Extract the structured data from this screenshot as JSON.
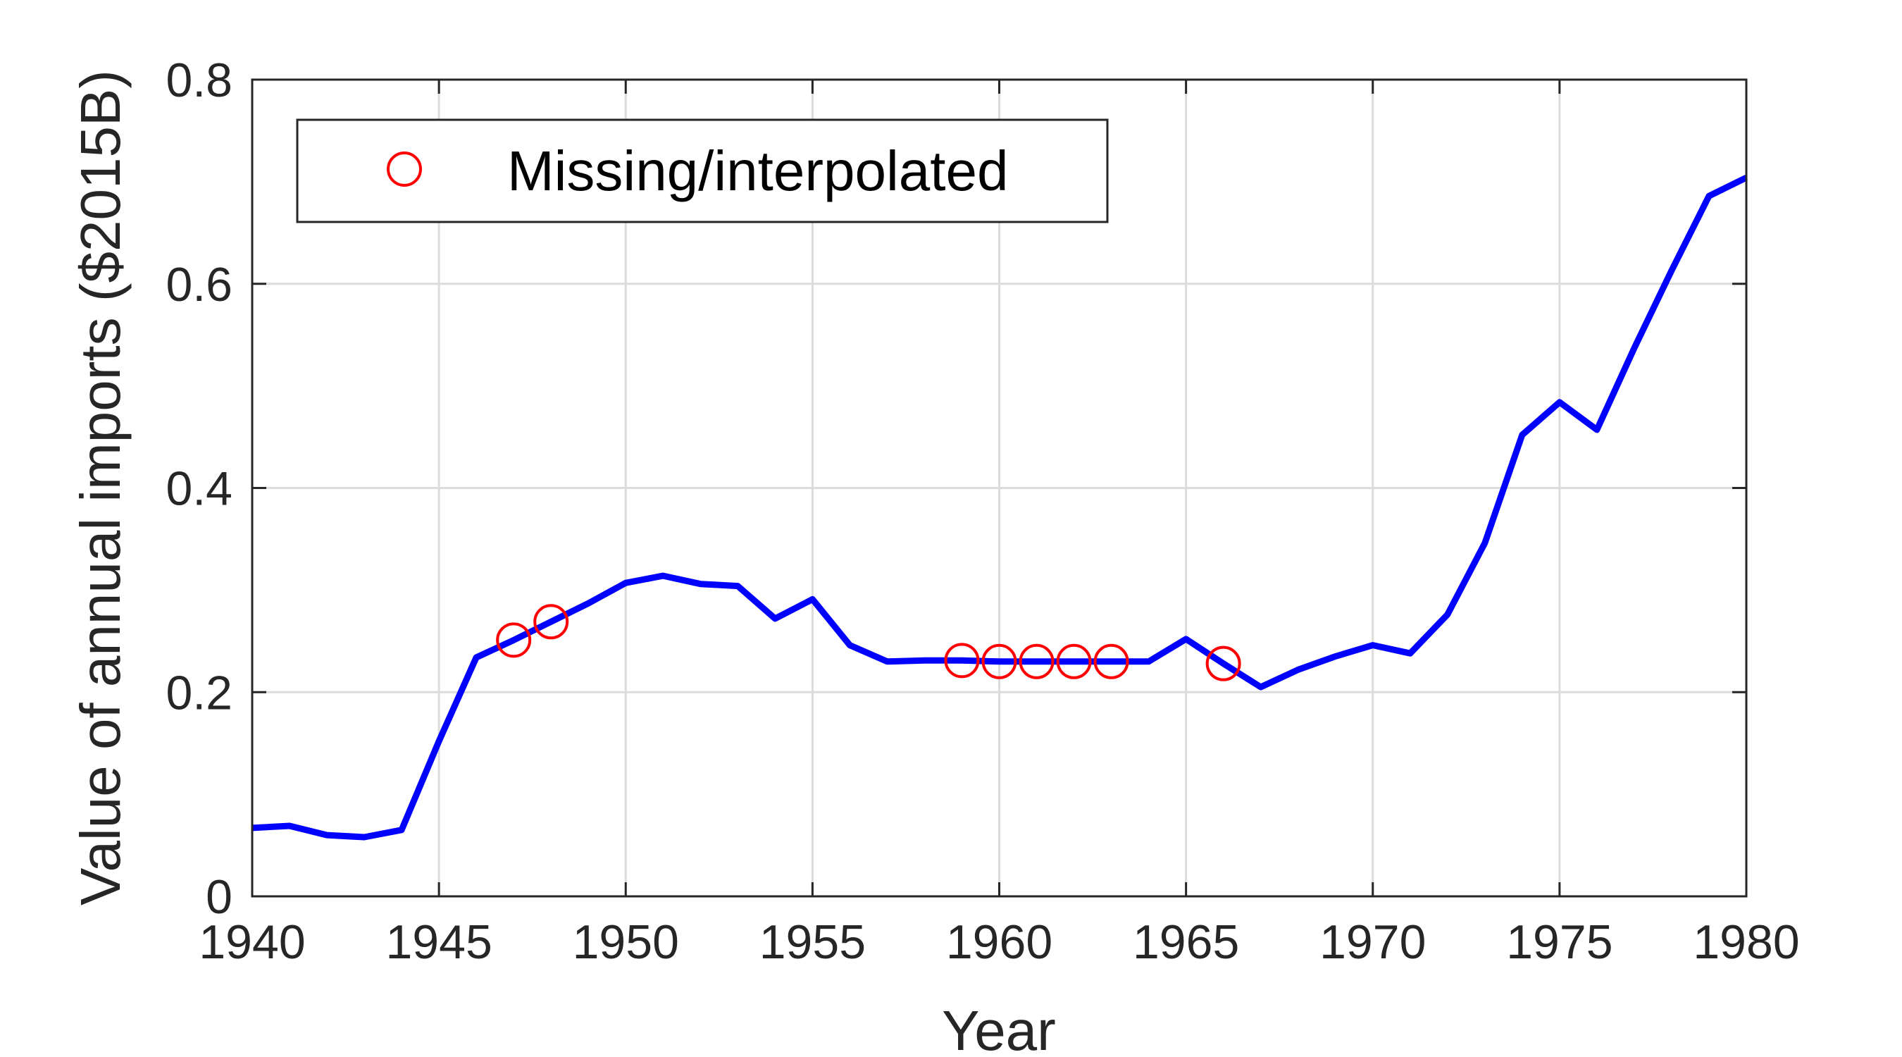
{
  "chart_data": {
    "type": "line",
    "title": "",
    "xlabel": "Year",
    "ylabel": "Value of annual imports ($2015B)",
    "xlim": [
      1940,
      1980
    ],
    "ylim": [
      0,
      0.8
    ],
    "xticks": [
      1940,
      1945,
      1950,
      1955,
      1960,
      1965,
      1970,
      1975,
      1980
    ],
    "yticks": [
      0,
      0.2,
      0.4,
      0.6,
      0.8
    ],
    "xtick_labels": [
      "1940",
      "1945",
      "1950",
      "1955",
      "1960",
      "1965",
      "1970",
      "1975",
      "1980"
    ],
    "ytick_labels": [
      "0",
      "0.2",
      "0.4",
      "0.6",
      "0.8"
    ],
    "grid": true,
    "legend_position": "top-left",
    "series": [
      {
        "color": "#0000ff",
        "style": "line",
        "x": [
          1940,
          1941,
          1942,
          1943,
          1944,
          1945,
          1946,
          1947,
          1948,
          1949,
          1950,
          1951,
          1952,
          1953,
          1954,
          1955,
          1956,
          1957,
          1958,
          1959,
          1960,
          1961,
          1962,
          1963,
          1964,
          1965,
          1966,
          1967,
          1968,
          1969,
          1970,
          1971,
          1972,
          1973,
          1974,
          1975,
          1976,
          1977,
          1978,
          1979,
          1980
        ],
        "y": [
          0.067,
          0.069,
          0.06,
          0.058,
          0.065,
          0.152,
          0.234,
          0.251,
          0.269,
          0.287,
          0.307,
          0.314,
          0.306,
          0.304,
          0.272,
          0.291,
          0.246,
          0.23,
          0.231,
          0.231,
          0.23,
          0.23,
          0.23,
          0.23,
          0.23,
          0.252,
          0.228,
          0.205,
          0.222,
          0.235,
          0.246,
          0.238,
          0.276,
          0.346,
          0.452,
          0.484,
          0.457,
          0.537,
          0.613,
          0.686,
          0.704
        ]
      },
      {
        "name": "Missing/interpolated",
        "color": "#ff0000",
        "style": "marker-circle-open",
        "x": [
          1947,
          1948,
          1959,
          1960,
          1961,
          1962,
          1963,
          1966
        ],
        "y": [
          0.251,
          0.269,
          0.231,
          0.23,
          0.23,
          0.23,
          0.23,
          0.228
        ]
      }
    ]
  }
}
